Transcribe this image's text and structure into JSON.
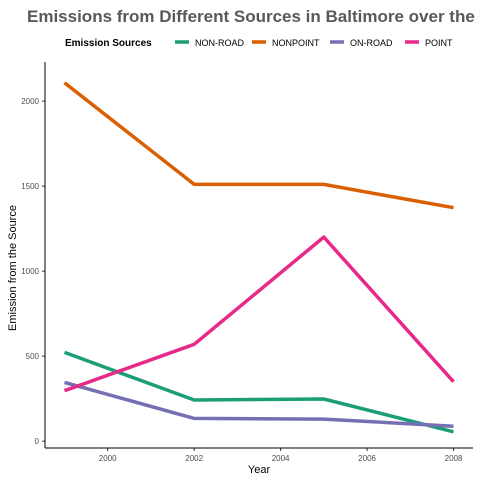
{
  "chart_data": {
    "type": "line",
    "title": "Emissions from Different Sources in Baltimore over the Year",
    "xlabel": "Year",
    "ylabel": "Emission from the Source",
    "x": [
      1999,
      2002,
      2005,
      2008
    ],
    "xlim": [
      1998.55,
      2008.45
    ],
    "ylim": [
      -40,
      2230
    ],
    "xticks": [
      2000,
      2002,
      2004,
      2006,
      2008
    ],
    "yticks": [
      0,
      500,
      1000,
      1500,
      2000
    ],
    "grid": false,
    "legend": {
      "title": "Emission Sources",
      "position": "top"
    },
    "series": [
      {
        "name": "NON-ROAD",
        "color": "#1b9e77",
        "values": [
          522,
          242,
          248,
          55
        ]
      },
      {
        "name": "NONPOINT",
        "color": "#d95f02",
        "values": [
          2108,
          1510,
          1510,
          1373
        ]
      },
      {
        "name": "ON-ROAD",
        "color": "#7570b3",
        "values": [
          346,
          134,
          130,
          88
        ]
      },
      {
        "name": "POINT",
        "color": "#e7298a",
        "values": [
          297,
          570,
          1200,
          350
        ]
      }
    ]
  }
}
